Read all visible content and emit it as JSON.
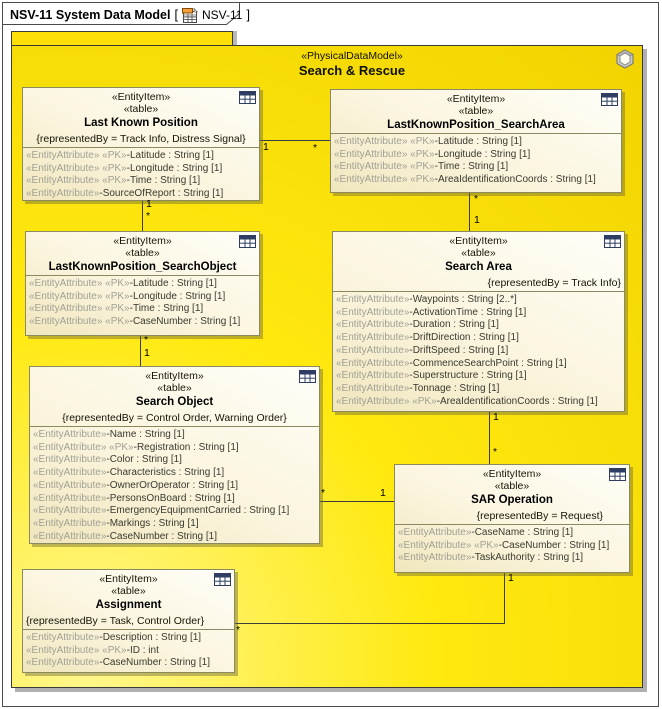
{
  "diagram": {
    "frame_title": "NSV-11 System Data Model",
    "frame_bracket_open": "[",
    "frame_ref": "NSV-11",
    "frame_bracket_close": "]",
    "frame_icon": "nsv-diagram-icon"
  },
  "package": {
    "stereotype": "«PhysicalDataModel»",
    "name": "Search & Rescue",
    "corner_icon": "model-cube-icon",
    "fill_color": "#FFE90F"
  },
  "entities": [
    {
      "stereotype1": "«EntityItem»",
      "stereotype2": "«table»",
      "name": "Last Known Position",
      "constraint": "{representedBy = Track Info, Distress Signal}",
      "attributes": [
        {
          "stereo": "«EntityAttribute»",
          "pk": "«PK»",
          "text": "-Latitude : String [1]"
        },
        {
          "stereo": "«EntityAttribute»",
          "pk": "«PK»",
          "text": "-Longitude : String [1]"
        },
        {
          "stereo": "«EntityAttribute»",
          "pk": "«PK»",
          "text": "-Time : String [1]"
        },
        {
          "stereo": "«EntityAttribute»",
          "text": "-SourceOfReport : String [1]"
        }
      ]
    },
    {
      "stereotype1": "«EntityItem»",
      "stereotype2": "«table»",
      "name": "LastKnownPosition_SearchArea",
      "attributes": [
        {
          "stereo": "«EntityAttribute»",
          "pk": "«PK»",
          "text": "-Latitude : String [1]"
        },
        {
          "stereo": "«EntityAttribute»",
          "pk": "«PK»",
          "text": "-Longitude : String [1]"
        },
        {
          "stereo": "«EntityAttribute»",
          "pk": "«PK»",
          "text": "-Time : String [1]"
        },
        {
          "stereo": "«EntityAttribute»",
          "pk": "«PK»",
          "text": "-AreaIdentificationCoords : String [1]"
        }
      ]
    },
    {
      "stereotype1": "«EntityItem»",
      "stereotype2": "«table»",
      "name": "LastKnownPosition_SearchObject",
      "attributes": [
        {
          "stereo": "«EntityAttribute»",
          "pk": "«PK»",
          "text": "-Latitude : String [1]"
        },
        {
          "stereo": "«EntityAttribute»",
          "pk": "«PK»",
          "text": "-Longitude : String [1]"
        },
        {
          "stereo": "«EntityAttribute»",
          "pk": "«PK»",
          "text": "-Time : String [1]"
        },
        {
          "stereo": "«EntityAttribute»",
          "pk": "«PK»",
          "text": "-CaseNumber : String [1]"
        }
      ]
    },
    {
      "stereotype1": "«EntityItem»",
      "stereotype2": "«table»",
      "name": "Search Area",
      "constraint": "{representedBy = Track Info}",
      "attributes": [
        {
          "stereo": "«EntityAttribute»",
          "text": "-Waypoints : String [2..*]"
        },
        {
          "stereo": "«EntityAttribute»",
          "text": "-ActivationTime : String [1]"
        },
        {
          "stereo": "«EntityAttribute»",
          "text": "-Duration : String [1]"
        },
        {
          "stereo": "«EntityAttribute»",
          "text": "-DriftDirection : String [1]"
        },
        {
          "stereo": "«EntityAttribute»",
          "text": "-DriftSpeed : String [1]"
        },
        {
          "stereo": "«EntityAttribute»",
          "text": "-CommenceSearchPoint : String [1]"
        },
        {
          "stereo": "«EntityAttribute»",
          "text": "-Superstructure : String [1]"
        },
        {
          "stereo": "«EntityAttribute»",
          "text": "-Tonnage : String [1]"
        },
        {
          "stereo": "«EntityAttribute»",
          "pk": "«PK»",
          "text": "-AreaIdentificationCoords : String [1]"
        }
      ]
    },
    {
      "stereotype1": "«EntityItem»",
      "stereotype2": "«table»",
      "name": "Search Object",
      "constraint": "{representedBy = Control Order, Warning Order}",
      "attributes": [
        {
          "stereo": "«EntityAttribute»",
          "text": "-Name : String [1]"
        },
        {
          "stereo": "«EntityAttribute»",
          "pk": "«PK»",
          "text": "-Registration : String [1]"
        },
        {
          "stereo": "«EntityAttribute»",
          "text": "-Color : String [1]"
        },
        {
          "stereo": "«EntityAttribute»",
          "text": "-Characteristics : String [1]"
        },
        {
          "stereo": "«EntityAttribute»",
          "text": "-OwnerOrOperator : String [1]"
        },
        {
          "stereo": "«EntityAttribute»",
          "text": "-PersonsOnBoard : String [1]"
        },
        {
          "stereo": "«EntityAttribute»",
          "text": "-EmergencyEquipmentCarried : String [1]"
        },
        {
          "stereo": "«EntityAttribute»",
          "text": "-Markings : String [1]"
        },
        {
          "stereo": "«EntityAttribute»",
          "text": "-CaseNumber : String [1]"
        }
      ]
    },
    {
      "stereotype1": "«EntityItem»",
      "stereotype2": "«table»",
      "name": "SAR Operation",
      "constraint": "{representedBy = Request}",
      "attributes": [
        {
          "stereo": "«EntityAttribute»",
          "text": "-CaseName : String [1]"
        },
        {
          "stereo": "«EntityAttribute»",
          "pk": "«PK»",
          "text": "-CaseNumber : String [1]"
        },
        {
          "stereo": "«EntityAttribute»",
          "text": "-TaskAuthority : String [1]"
        }
      ]
    },
    {
      "stereotype1": "«EntityItem»",
      "stereotype2": "«table»",
      "name": "Assignment",
      "constraint": "{representedBy = Task, Control Order}",
      "attributes": [
        {
          "stereo": "«EntityAttribute»",
          "text": "-Description : String [1]"
        },
        {
          "stereo": "«EntityAttribute»",
          "pk": "«PK»",
          "text": "-ID : int"
        },
        {
          "stereo": "«EntityAttribute»",
          "text": "-CaseNumber : String [1]"
        }
      ]
    }
  ],
  "connectors": [
    {
      "name": "lastknownposition-to-lastknownpositionsearcharea",
      "end_a": "1",
      "end_b": "*"
    },
    {
      "name": "lastknownposition-to-lastknownpositionsearchobject",
      "end_a": "1",
      "end_b": "*"
    },
    {
      "name": "lastknownpositionsearcharea-to-searcharea",
      "end_a": "*",
      "end_b": "1"
    },
    {
      "name": "lastknownpositionsearchobject-to-searchobject",
      "end_a": "*",
      "end_b": "1"
    },
    {
      "name": "searchobject-to-saroperation",
      "end_a": "*",
      "end_b": "1"
    },
    {
      "name": "searcharea-to-saroperation",
      "end_a": "1",
      "end_b": "*"
    },
    {
      "name": "saroperation-to-assignment",
      "end_a": "1",
      "end_b": "*"
    }
  ]
}
